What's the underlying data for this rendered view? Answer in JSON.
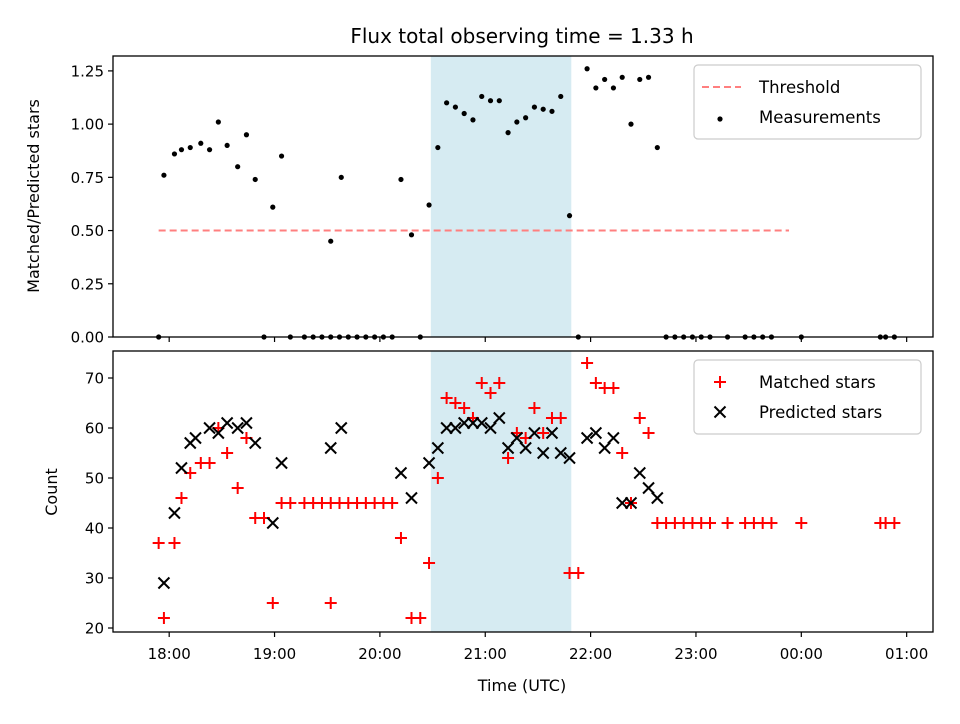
{
  "chart_data": [
    {
      "type": "scatter",
      "title": "Flux total observing time = 1.33 h",
      "xlabel": "",
      "ylabel": "Matched/Predicted stars",
      "ylim": [
        0,
        1.32
      ],
      "yticks": [
        "0.00",
        "0.25",
        "0.50",
        "0.75",
        "1.00",
        "1.25"
      ],
      "xlim": [
        "17:28",
        "01:15"
      ],
      "grid": false,
      "legend_position": "top-right",
      "shaded_interval": {
        "start": "20:29",
        "end": "21:49",
        "color": "#add8e6"
      },
      "series": [
        {
          "name": "Threshold",
          "style": "dashed-line",
          "color": "#ff7f7f",
          "points": [
            [
              "17:54",
              0.5
            ],
            [
              "23:53",
              0.5
            ]
          ]
        },
        {
          "name": "Measurements",
          "style": "dots",
          "color": "#000000",
          "points": [
            [
              "17:54",
              0.0
            ],
            [
              "17:57",
              0.76
            ],
            [
              "18:03",
              0.86
            ],
            [
              "18:07",
              0.88
            ],
            [
              "18:12",
              0.89
            ],
            [
              "18:18",
              0.91
            ],
            [
              "18:23",
              0.88
            ],
            [
              "18:28",
              1.01
            ],
            [
              "18:33",
              0.9
            ],
            [
              "18:39",
              0.8
            ],
            [
              "18:44",
              0.95
            ],
            [
              "18:49",
              0.74
            ],
            [
              "18:54",
              0.0
            ],
            [
              "18:59",
              0.61
            ],
            [
              "19:04",
              0.85
            ],
            [
              "19:09",
              0.0
            ],
            [
              "19:17",
              0.0
            ],
            [
              "19:22",
              0.0
            ],
            [
              "19:27",
              0.0
            ],
            [
              "19:32",
              0.0
            ],
            [
              "19:37",
              0.0
            ],
            [
              "19:32",
              0.45
            ],
            [
              "19:38",
              0.75
            ],
            [
              "19:42",
              0.0
            ],
            [
              "19:47",
              0.0
            ],
            [
              "19:52",
              0.0
            ],
            [
              "19:57",
              0.0
            ],
            [
              "20:02",
              0.0
            ],
            [
              "20:07",
              0.0
            ],
            [
              "20:12",
              0.74
            ],
            [
              "20:18",
              0.48
            ],
            [
              "20:23",
              0.0
            ],
            [
              "20:28",
              0.62
            ],
            [
              "20:33",
              0.89
            ],
            [
              "20:38",
              1.1
            ],
            [
              "20:43",
              1.08
            ],
            [
              "20:48",
              1.05
            ],
            [
              "20:53",
              1.02
            ],
            [
              "20:58",
              1.13
            ],
            [
              "21:03",
              1.11
            ],
            [
              "21:08",
              1.11
            ],
            [
              "21:13",
              0.96
            ],
            [
              "21:18",
              1.01
            ],
            [
              "21:23",
              1.03
            ],
            [
              "21:28",
              1.08
            ],
            [
              "21:33",
              1.07
            ],
            [
              "21:38",
              1.06
            ],
            [
              "21:43",
              1.13
            ],
            [
              "21:48",
              0.57
            ],
            [
              "21:53",
              0.0
            ],
            [
              "21:58",
              1.26
            ],
            [
              "22:03",
              1.17
            ],
            [
              "22:08",
              1.21
            ],
            [
              "22:13",
              1.17
            ],
            [
              "22:18",
              1.22
            ],
            [
              "22:23",
              1.0
            ],
            [
              "22:28",
              1.21
            ],
            [
              "22:33",
              1.22
            ],
            [
              "22:38",
              0.89
            ],
            [
              "22:43",
              0.0
            ],
            [
              "22:48",
              0.0
            ],
            [
              "22:53",
              0.0
            ],
            [
              "22:58",
              0.0
            ],
            [
              "23:03",
              0.0
            ],
            [
              "23:08",
              0.0
            ],
            [
              "23:18",
              0.0
            ],
            [
              "23:28",
              0.0
            ],
            [
              "23:33",
              0.0
            ],
            [
              "23:38",
              0.0
            ],
            [
              "23:43",
              0.0
            ],
            [
              "00:00",
              0.0
            ],
            [
              "00:45",
              0.0
            ],
            [
              "00:48",
              0.0
            ],
            [
              "00:53",
              0.0
            ]
          ]
        }
      ]
    },
    {
      "type": "scatter",
      "title": "",
      "xlabel": "Time (UTC)",
      "ylabel": "Count",
      "ylim": [
        19.2,
        75.4
      ],
      "yticks": [
        "20",
        "30",
        "40",
        "50",
        "60",
        "70"
      ],
      "xticks": [
        "18:00",
        "19:00",
        "20:00",
        "21:00",
        "22:00",
        "23:00",
        "00:00",
        "01:00"
      ],
      "xlim": [
        "17:28",
        "01:15"
      ],
      "grid": false,
      "legend_position": "top-right",
      "shaded_interval": {
        "start": "20:29",
        "end": "21:49",
        "color": "#add8e6"
      },
      "series": [
        {
          "name": "Matched stars",
          "style": "plus",
          "color": "#ff0000",
          "points": [
            [
              "17:54",
              37
            ],
            [
              "17:57",
              22
            ],
            [
              "18:03",
              37
            ],
            [
              "18:07",
              46
            ],
            [
              "18:12",
              51
            ],
            [
              "18:18",
              53
            ],
            [
              "18:23",
              53
            ],
            [
              "18:28",
              60
            ],
            [
              "18:33",
              55
            ],
            [
              "18:39",
              48
            ],
            [
              "18:44",
              58
            ],
            [
              "18:49",
              42
            ],
            [
              "18:54",
              42
            ],
            [
              "18:59",
              25
            ],
            [
              "19:04",
              45
            ],
            [
              "19:09",
              45
            ],
            [
              "19:17",
              45
            ],
            [
              "19:22",
              45
            ],
            [
              "19:27",
              45
            ],
            [
              "19:32",
              45
            ],
            [
              "19:37",
              45
            ],
            [
              "19:32",
              25
            ],
            [
              "19:42",
              45
            ],
            [
              "19:47",
              45
            ],
            [
              "19:52",
              45
            ],
            [
              "19:57",
              45
            ],
            [
              "20:02",
              45
            ],
            [
              "20:07",
              45
            ],
            [
              "20:12",
              38
            ],
            [
              "20:18",
              22
            ],
            [
              "20:23",
              22
            ],
            [
              "20:28",
              33
            ],
            [
              "20:33",
              50
            ],
            [
              "20:38",
              66
            ],
            [
              "20:43",
              65
            ],
            [
              "20:48",
              64
            ],
            [
              "20:53",
              62
            ],
            [
              "20:58",
              69
            ],
            [
              "21:03",
              67
            ],
            [
              "21:08",
              69
            ],
            [
              "21:13",
              54
            ],
            [
              "21:18",
              59
            ],
            [
              "21:23",
              58
            ],
            [
              "21:28",
              64
            ],
            [
              "21:33",
              59
            ],
            [
              "21:38",
              62
            ],
            [
              "21:43",
              62
            ],
            [
              "21:48",
              31
            ],
            [
              "21:53",
              31
            ],
            [
              "21:58",
              73
            ],
            [
              "22:03",
              69
            ],
            [
              "22:08",
              68
            ],
            [
              "22:13",
              68
            ],
            [
              "22:18",
              55
            ],
            [
              "22:23",
              45
            ],
            [
              "22:28",
              62
            ],
            [
              "22:33",
              59
            ],
            [
              "22:38",
              41
            ],
            [
              "22:43",
              41
            ],
            [
              "22:48",
              41
            ],
            [
              "22:53",
              41
            ],
            [
              "22:58",
              41
            ],
            [
              "23:03",
              41
            ],
            [
              "23:08",
              41
            ],
            [
              "23:18",
              41
            ],
            [
              "23:28",
              41
            ],
            [
              "23:33",
              41
            ],
            [
              "23:38",
              41
            ],
            [
              "23:43",
              41
            ],
            [
              "00:00",
              41
            ],
            [
              "00:45",
              41
            ],
            [
              "00:48",
              41
            ],
            [
              "00:53",
              41
            ]
          ]
        },
        {
          "name": "Predicted stars",
          "style": "x",
          "color": "#000000",
          "points": [
            [
              "17:57",
              29
            ],
            [
              "18:03",
              43
            ],
            [
              "18:07",
              52
            ],
            [
              "18:12",
              57
            ],
            [
              "18:15",
              58
            ],
            [
              "18:23",
              60
            ],
            [
              "18:28",
              59
            ],
            [
              "18:33",
              61
            ],
            [
              "18:39",
              60
            ],
            [
              "18:44",
              61
            ],
            [
              "18:49",
              57
            ],
            [
              "18:59",
              41
            ],
            [
              "19:04",
              53
            ],
            [
              "19:32",
              56
            ],
            [
              "19:38",
              60
            ],
            [
              "20:12",
              51
            ],
            [
              "20:18",
              46
            ],
            [
              "20:28",
              53
            ],
            [
              "20:33",
              56
            ],
            [
              "20:38",
              60
            ],
            [
              "20:43",
              60
            ],
            [
              "20:48",
              61
            ],
            [
              "20:53",
              61
            ],
            [
              "20:58",
              61
            ],
            [
              "21:03",
              60
            ],
            [
              "21:08",
              62
            ],
            [
              "21:13",
              56
            ],
            [
              "21:18",
              58
            ],
            [
              "21:23",
              56
            ],
            [
              "21:28",
              59
            ],
            [
              "21:33",
              55
            ],
            [
              "21:38",
              59
            ],
            [
              "21:43",
              55
            ],
            [
              "21:48",
              54
            ],
            [
              "21:58",
              58
            ],
            [
              "22:03",
              59
            ],
            [
              "22:08",
              56
            ],
            [
              "22:13",
              58
            ],
            [
              "22:18",
              45
            ],
            [
              "22:23",
              45
            ],
            [
              "22:28",
              51
            ],
            [
              "22:33",
              48
            ],
            [
              "22:38",
              46
            ]
          ]
        }
      ]
    }
  ]
}
